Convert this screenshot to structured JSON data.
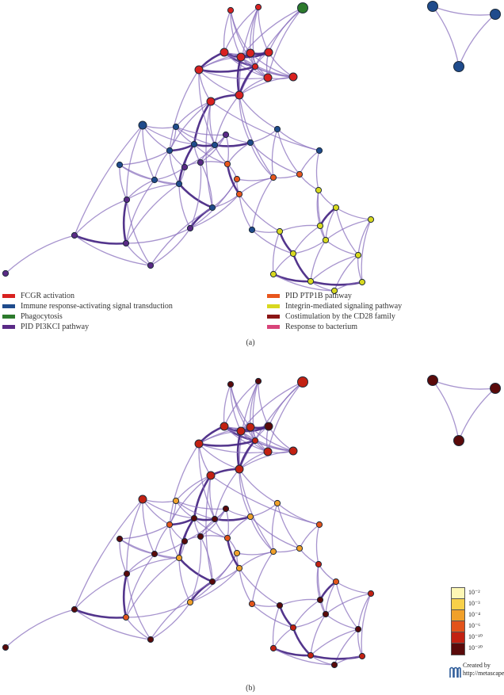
{
  "colors": {
    "edge": "#4a2a86",
    "edge_light": "#8a70bd",
    "node_outline": "#1d2b3a"
  },
  "panels": [
    {
      "label": "(a)"
    },
    {
      "label": "(b)"
    }
  ],
  "legend": {
    "items": [
      {
        "label": "FCGR activation",
        "color": "#d8211f"
      },
      {
        "label": "Immune response-activating signal transduction",
        "color": "#1f4b8c"
      },
      {
        "label": "Phagocytosis",
        "color": "#2c7a2c"
      },
      {
        "label": "PID PI3KCI pathway",
        "color": "#5a2a86"
      },
      {
        "label": "PID PTP1B pathway",
        "color": "#e8561d"
      },
      {
        "label": "Integrin-mediated signaling pathway",
        "color": "#d8d81f"
      },
      {
        "label": "Costimulation by the CD28 family",
        "color": "#8b1515"
      },
      {
        "label": "Response to bacterium",
        "color": "#d8447a"
      }
    ]
  },
  "pvalue_scale": {
    "entries": [
      {
        "label": "10⁻²",
        "color": "#fdf7b5"
      },
      {
        "label": "10⁻³",
        "color": "#f7d04a"
      },
      {
        "label": "10⁻⁴",
        "color": "#f0a02a"
      },
      {
        "label": "10⁻⁶",
        "color": "#e2541b"
      },
      {
        "label": "10⁻¹⁰",
        "color": "#c22112"
      },
      {
        "label": "10⁻²⁰",
        "color": "#5a0a0a"
      }
    ]
  },
  "credit": {
    "line1": "Created by",
    "line2": "http://metascape.org"
  },
  "network": {
    "nodes": [
      {
        "id": "n1",
        "cat": "FCGR activation",
        "pv": "10⁻²⁰"
      },
      {
        "id": "n2",
        "cat": "FCGR activation",
        "pv": "10⁻²⁰"
      },
      {
        "id": "n3",
        "cat": "Phagocytosis",
        "pv": "10⁻¹⁰"
      },
      {
        "id": "n4",
        "cat": "FCGR activation",
        "pv": "10⁻¹⁰"
      },
      {
        "id": "n5",
        "cat": "FCGR activation",
        "pv": "10⁻¹⁰"
      },
      {
        "id": "n6",
        "cat": "FCGR activation",
        "pv": "10⁻¹⁰"
      },
      {
        "id": "n7",
        "cat": "FCGR activation",
        "pv": "10⁻²⁰"
      },
      {
        "id": "n8",
        "cat": "FCGR activation",
        "pv": "10⁻¹⁰"
      },
      {
        "id": "n9",
        "cat": "FCGR activation",
        "pv": "10⁻¹⁰"
      },
      {
        "id": "n10",
        "cat": "FCGR activation",
        "pv": "10⁻¹⁰"
      },
      {
        "id": "n11",
        "cat": "FCGR activation",
        "pv": "10⁻¹⁰"
      },
      {
        "id": "n12",
        "cat": "FCGR activation",
        "pv": "10⁻¹⁰"
      },
      {
        "id": "n13",
        "cat": "FCGR activation",
        "pv": "10⁻¹⁰"
      },
      {
        "id": "n14",
        "cat": "Immune response-activating signal transduction",
        "pv": "10⁻¹⁰"
      },
      {
        "id": "n15",
        "cat": "Immune response-activating signal transduction",
        "pv": "10⁻²⁰"
      },
      {
        "id": "n16",
        "cat": "Immune response-activating signal transduction",
        "pv": "10⁻⁶"
      },
      {
        "id": "n17",
        "cat": "Immune response-activating signal transduction",
        "pv": "10⁻⁴"
      },
      {
        "id": "n18",
        "cat": "Immune response-activating signal transduction",
        "pv": "10⁻²⁰"
      },
      {
        "id": "n19",
        "cat": "Immune response-activating signal transduction",
        "pv": "10⁻²⁰"
      },
      {
        "id": "n20",
        "cat": "Immune response-activating signal transduction",
        "pv": "10⁻⁴"
      },
      {
        "id": "n21",
        "cat": "Immune response-activating signal transduction",
        "pv": "10⁻⁴"
      },
      {
        "id": "n22",
        "cat": "Immune response-activating signal transduction",
        "pv": "10⁻⁶"
      },
      {
        "id": "n23",
        "cat": "Immune response-activating signal transduction",
        "pv": "10⁻²⁰"
      },
      {
        "id": "n24",
        "cat": "Immune response-activating signal transduction",
        "pv": "10⁻⁴"
      },
      {
        "id": "n25",
        "cat": "Immune response-activating signal transduction",
        "pv": "10⁻²⁰"
      },
      {
        "id": "n26",
        "cat": "PID PI3KCI pathway",
        "pv": "10⁻²⁰"
      },
      {
        "id": "n27",
        "cat": "PID PI3KCI pathway",
        "pv": "10⁻²⁰"
      },
      {
        "id": "n28",
        "cat": "PID PI3KCI pathway",
        "pv": "10⁻⁶"
      },
      {
        "id": "n29",
        "cat": "PID PI3KCI pathway",
        "pv": "10⁻²⁰"
      },
      {
        "id": "n30",
        "cat": "PID PI3KCI pathway",
        "pv": "10⁻⁴"
      },
      {
        "id": "n31",
        "cat": "PID PTP1B pathway",
        "pv": "10⁻⁴"
      },
      {
        "id": "n32",
        "cat": "PID PTP1B pathway",
        "pv": "10⁻⁶"
      },
      {
        "id": "n33",
        "cat": "PID PTP1B pathway",
        "pv": "10⁻⁴"
      },
      {
        "id": "n34",
        "cat": "PID PTP1B pathway",
        "pv": "10⁻⁴"
      },
      {
        "id": "n35",
        "cat": "PID PTP1B pathway",
        "pv": "10⁻⁴"
      },
      {
        "id": "n36",
        "cat": "Immune response-activating signal transduction",
        "pv": "10⁻⁶"
      },
      {
        "id": "n37",
        "cat": "Integrin-mediated signaling pathway",
        "pv": "10⁻¹⁰"
      },
      {
        "id": "n38",
        "cat": "Integrin-mediated signaling pathway",
        "pv": "10⁻⁶"
      },
      {
        "id": "n39",
        "cat": "Integrin-mediated signaling pathway",
        "pv": "10⁻²⁰"
      },
      {
        "id": "n40",
        "cat": "Integrin-mediated signaling pathway",
        "pv": "10⁻¹⁰"
      },
      {
        "id": "n41",
        "cat": "Integrin-mediated signaling pathway",
        "pv": "10⁻²⁰"
      },
      {
        "id": "n42",
        "cat": "Integrin-mediated signaling pathway",
        "pv": "10⁻¹⁰"
      },
      {
        "id": "n43",
        "cat": "Integrin-mediated signaling pathway",
        "pv": "10⁻²⁰"
      },
      {
        "id": "n44",
        "cat": "Integrin-mediated signaling pathway",
        "pv": "10⁻¹⁰"
      },
      {
        "id": "n45",
        "cat": "Integrin-mediated signaling pathway",
        "pv": "10⁻¹⁰"
      },
      {
        "id": "n46",
        "cat": "Integrin-mediated signaling pathway",
        "pv": "10⁻¹⁰"
      },
      {
        "id": "n47",
        "cat": "Integrin-mediated signaling pathway",
        "pv": "10⁻²⁰"
      },
      {
        "id": "n48",
        "cat": "Integrin-mediated signaling pathway",
        "pv": "10⁻²⁰"
      },
      {
        "id": "n49",
        "cat": "PID PI3KCI pathway",
        "pv": "10⁻²⁰"
      },
      {
        "id": "n50",
        "cat": "PID PI3KCI pathway",
        "pv": "10⁻²⁰"
      },
      {
        "id": "n51",
        "cat": "PID PI3KCI pathway",
        "pv": "10⁻²⁰"
      },
      {
        "id": "n52",
        "cat": "PID PI3KCI pathway",
        "pv": "10⁻²⁰"
      },
      {
        "id": "t1",
        "cat": "Immune response-activating signal transduction",
        "pv": "10⁻²⁰"
      },
      {
        "id": "t2",
        "cat": "Immune response-activating signal transduction",
        "pv": "10⁻²⁰"
      },
      {
        "id": "t3",
        "cat": "Immune response-activating signal transduction",
        "pv": "10⁻²⁰"
      }
    ]
  }
}
